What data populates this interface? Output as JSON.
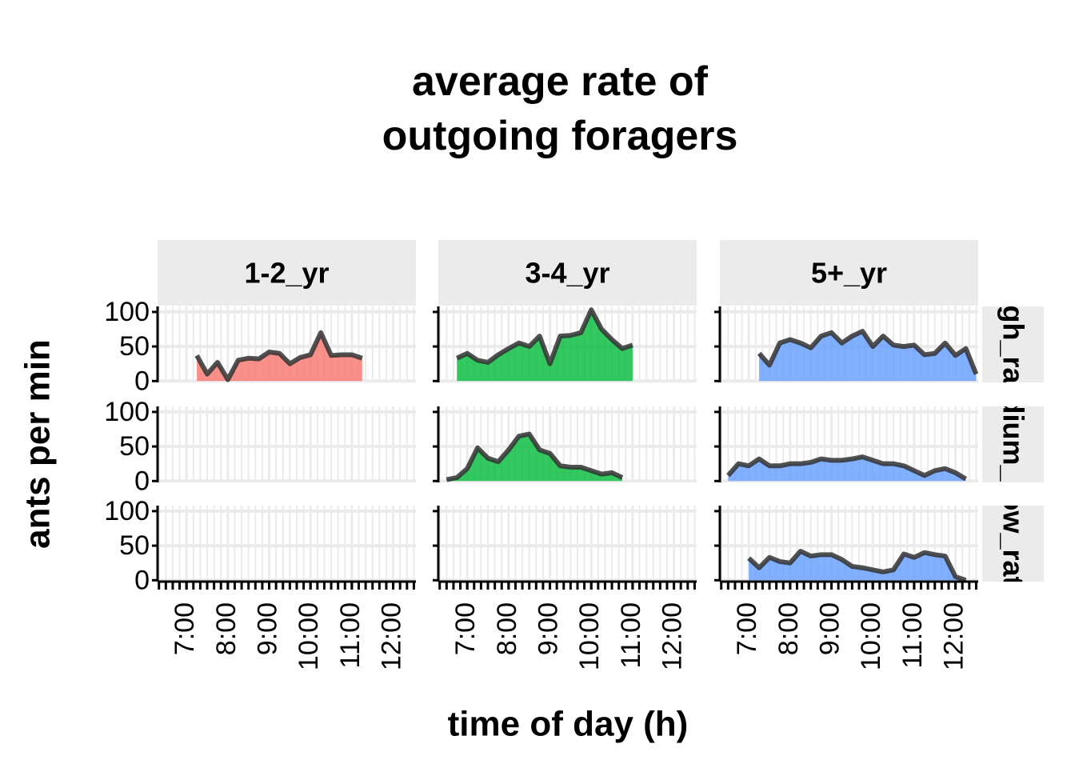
{
  "chart_data": {
    "type": "area",
    "title": "average rate of\noutgoing foragers",
    "x_label": "time of day (h)",
    "y_label": "ants per min",
    "columns": [
      "1-2_yr",
      "3-4_yr",
      "5+_yr"
    ],
    "rows": [
      "high_rate",
      "medium_rate",
      "low_rate"
    ],
    "colors": [
      "#F8766D",
      "#00BA38",
      "#619CFF"
    ],
    "line_color": "#333333",
    "xlim": [
      6.3,
      12.55
    ],
    "xticks": [
      {
        "value": 7,
        "label": "7:00"
      },
      {
        "value": 8,
        "label": "8:00"
      },
      {
        "value": 9,
        "label": "9:00"
      },
      {
        "value": 10,
        "label": "10:00"
      },
      {
        "value": 11,
        "label": "11:00"
      },
      {
        "value": 12,
        "label": "12:00"
      }
    ],
    "xminor_step_minutes": 10,
    "ylim": [
      -2,
      108
    ],
    "yticks": [
      0,
      50,
      100
    ],
    "grid": true,
    "panels": [
      [
        {
          "x": [
            7.25,
            7.5,
            7.75,
            8,
            8.25,
            8.5,
            8.75,
            9,
            9.25,
            9.5,
            9.75,
            10,
            10.25,
            10.5,
            10.75,
            11,
            11.25
          ],
          "values": [
            37,
            10,
            27,
            2,
            30,
            33,
            32,
            42,
            40,
            25,
            34,
            38,
            70,
            37,
            38,
            38,
            33
          ]
        },
        {
          "x": [
            6.75,
            7,
            7.25,
            7.5,
            7.75,
            8,
            8.25,
            8.5,
            8.75,
            9,
            9.25,
            9.5,
            9.75,
            10,
            10.25,
            10.5,
            10.75,
            11
          ],
          "values": [
            33,
            40,
            30,
            27,
            38,
            47,
            55,
            50,
            65,
            25,
            65,
            66,
            70,
            103,
            75,
            60,
            47,
            52
          ]
        },
        {
          "x": [
            7.25,
            7.5,
            7.75,
            8,
            8.25,
            8.5,
            8.75,
            9,
            9.25,
            9.5,
            9.75,
            10,
            10.25,
            10.5,
            10.75,
            11,
            11.25,
            11.5,
            11.75,
            12,
            12.25,
            12.5
          ],
          "values": [
            40,
            23,
            55,
            60,
            55,
            48,
            65,
            70,
            55,
            65,
            72,
            50,
            65,
            52,
            50,
            52,
            38,
            40,
            55,
            37,
            47,
            10
          ]
        }
      ],
      [
        null,
        {
          "x": [
            6.5,
            6.75,
            7,
            7.25,
            7.5,
            7.75,
            8,
            8.25,
            8.5,
            8.75,
            9,
            9.25,
            9.5,
            9.75,
            10,
            10.25,
            10.5,
            10.75
          ],
          "values": [
            2,
            5,
            18,
            48,
            33,
            28,
            45,
            65,
            68,
            45,
            40,
            22,
            20,
            20,
            15,
            10,
            12,
            5
          ]
        },
        {
          "x": [
            6.5,
            6.75,
            7,
            7.25,
            7.5,
            7.75,
            8,
            8.25,
            8.5,
            8.75,
            9,
            9.25,
            9.5,
            9.75,
            10,
            10.25,
            10.5,
            10.75,
            11,
            11.25,
            11.5,
            11.75,
            12,
            12.25
          ],
          "values": [
            8,
            25,
            22,
            32,
            22,
            22,
            25,
            25,
            27,
            32,
            30,
            30,
            32,
            35,
            30,
            25,
            25,
            22,
            15,
            8,
            15,
            18,
            12,
            3
          ]
        }
      ],
      [
        null,
        null,
        {
          "x": [
            7,
            7.25,
            7.5,
            7.75,
            8,
            8.25,
            8.5,
            8.75,
            9,
            9.25,
            9.5,
            9.75,
            10,
            10.25,
            10.5,
            10.75,
            11,
            11.25,
            11.5,
            11.75,
            12,
            12.25
          ],
          "values": [
            32,
            18,
            33,
            27,
            25,
            42,
            35,
            37,
            37,
            30,
            20,
            18,
            15,
            12,
            15,
            38,
            33,
            40,
            37,
            35,
            5,
            0
          ]
        }
      ]
    ]
  }
}
